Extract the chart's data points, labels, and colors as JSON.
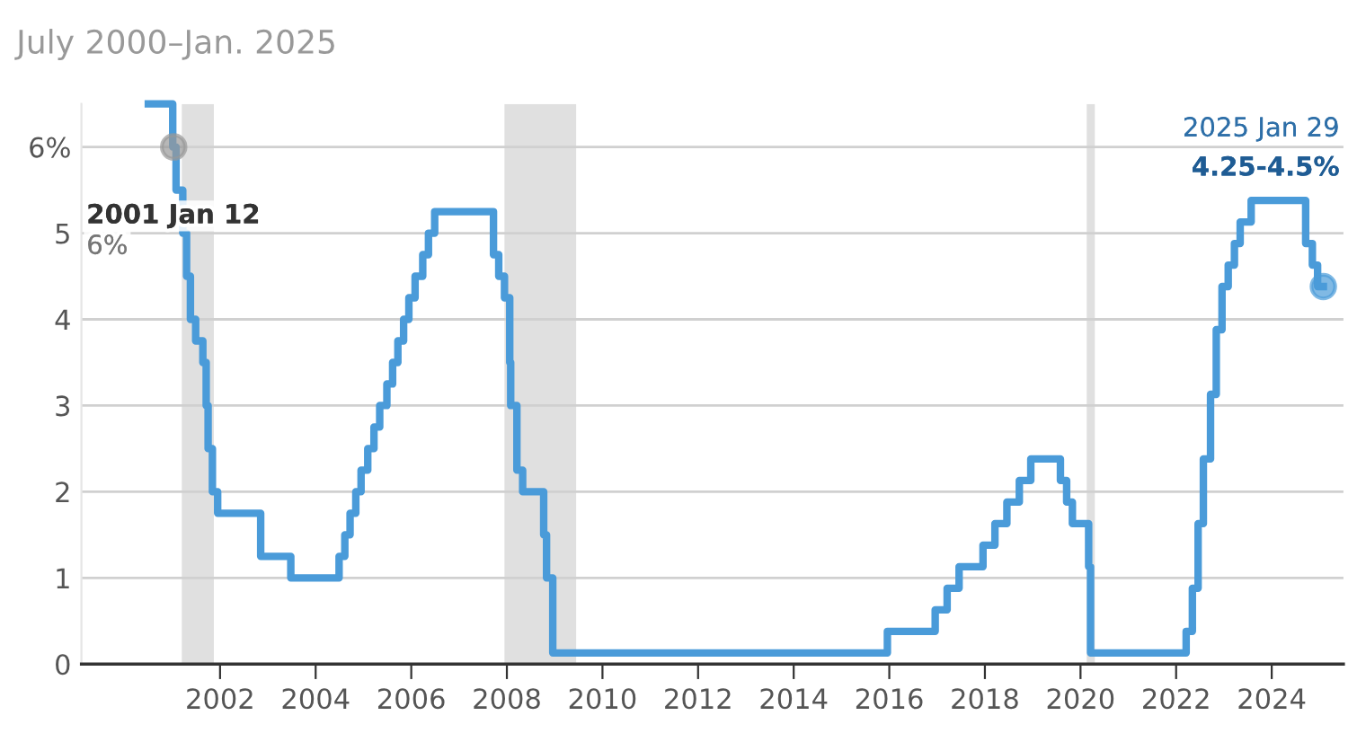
{
  "chart_data": {
    "type": "step",
    "title": "July 2000–Jan. 2025",
    "series": [
      {
        "color": "#4a9bd9",
        "x": [
          2000.5,
          2001.01,
          2001.08,
          2001.22,
          2001.3,
          2001.38,
          2001.49,
          2001.64,
          2001.71,
          2001.75,
          2001.84,
          2001.95,
          2002.85,
          2003.48,
          2004.49,
          2004.61,
          2004.72,
          2004.84,
          2004.95,
          2005.09,
          2005.22,
          2005.34,
          2005.49,
          2005.61,
          2005.72,
          2005.84,
          2005.95,
          2006.08,
          2006.24,
          2006.36,
          2006.49,
          2007.72,
          2007.83,
          2007.95,
          2008.06,
          2008.08,
          2008.21,
          2008.33,
          2008.77,
          2008.83,
          2008.96,
          2015.96,
          2016.96,
          2017.21,
          2017.46,
          2017.96,
          2018.21,
          2018.46,
          2018.72,
          2018.96,
          2019.58,
          2019.71,
          2019.83,
          2020.17,
          2020.21,
          2022.21,
          2022.34,
          2022.46,
          2022.57,
          2022.72,
          2022.84,
          2022.96,
          2023.09,
          2023.22,
          2023.34,
          2023.57,
          2024.71,
          2024.85,
          2024.96,
          2025.08
        ],
        "values": [
          6.5,
          6.0,
          5.5,
          5.0,
          4.5,
          4.0,
          3.75,
          3.5,
          3.0,
          2.5,
          2.0,
          1.75,
          1.25,
          1.0,
          1.25,
          1.5,
          1.75,
          2.0,
          2.25,
          2.5,
          2.75,
          3.0,
          3.25,
          3.5,
          3.75,
          4.0,
          4.25,
          4.5,
          4.75,
          5.0,
          5.25,
          4.75,
          4.5,
          4.25,
          3.5,
          3.0,
          2.25,
          2.0,
          1.5,
          1.0,
          0.13,
          0.38,
          0.63,
          0.88,
          1.13,
          1.38,
          1.63,
          1.88,
          2.13,
          2.38,
          2.13,
          1.88,
          1.63,
          1.13,
          0.13,
          0.38,
          0.88,
          1.63,
          2.38,
          3.13,
          3.88,
          4.38,
          4.63,
          4.88,
          5.13,
          5.38,
          4.88,
          4.63,
          4.38,
          4.38
        ]
      },
      {
        "type": "scatter",
        "x": [
          2001.03,
          2025.08
        ],
        "values": [
          6.0,
          4.38
        ],
        "colors": [
          "#999999",
          "#4a9bd9"
        ],
        "marker": "circle"
      }
    ],
    "bands": [
      {
        "axis": "x",
        "from": 2001.2,
        "to": 2001.87,
        "color": "#e0e0e0"
      },
      {
        "axis": "x",
        "from": 2007.95,
        "to": 2009.45,
        "color": "#e0e0e0"
      },
      {
        "axis": "x",
        "from": 2020.13,
        "to": 2020.3,
        "color": "#e0e0e0"
      }
    ],
    "annotations": [
      "2001 Jan 12",
      "6%",
      "2025 Jan 29",
      "4.25-4.5%"
    ],
    "xlim": [
      1999.1,
      2025.5
    ],
    "xticks": [
      2002,
      2004,
      2006,
      2008,
      2010,
      2012,
      2014,
      2016,
      2018,
      2020,
      2022,
      2024
    ],
    "ylim": [
      0,
      6.5
    ],
    "yticks": [
      0,
      1,
      2,
      3,
      4,
      5,
      {
        "value": 6,
        "label": "6%"
      }
    ],
    "grid": "y",
    "legend": false,
    "line_style": "solid"
  }
}
